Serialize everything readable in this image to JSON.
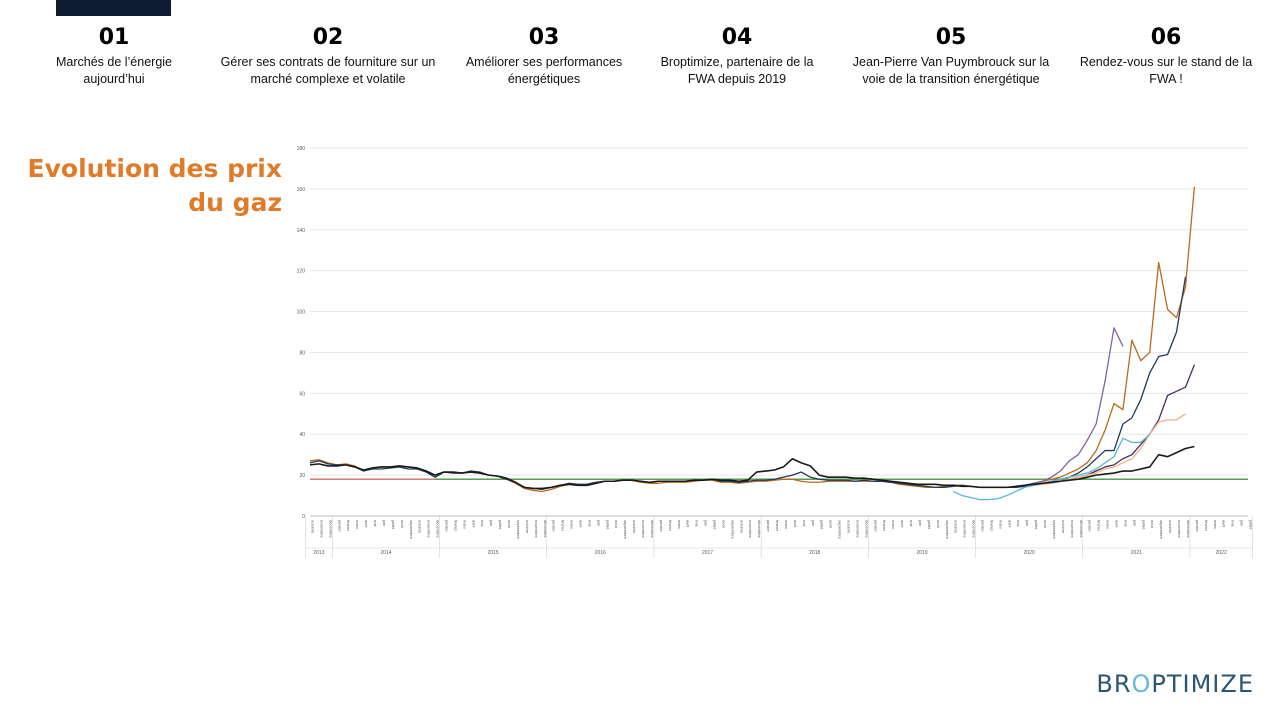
{
  "nav": [
    {
      "num": "01",
      "text": "Marchés de l’énergie aujourd’hui"
    },
    {
      "num": "02",
      "text": "Gérer ses contrats de fourniture sur un marché complexe et volatile"
    },
    {
      "num": "03",
      "text": "Améliorer ses performances énergétiques"
    },
    {
      "num": "04",
      "text": "Broptimize, partenaire de la FWA depuis 2019"
    },
    {
      "num": "05",
      "text": "Jean-Pierre Van Puymbrouck sur la voie de la transition énergétique"
    },
    {
      "num": "06",
      "text": "Rendez-vous sur le stand de la FWA !"
    }
  ],
  "title": "Evolution des prix du gaz",
  "logo": {
    "part1": "BR",
    "part2": "O",
    "part3": "PTIMIZE"
  },
  "chart_data": {
    "type": "line",
    "title": "",
    "ylim": [
      0,
      180
    ],
    "y_ticks": [
      0,
      20,
      40,
      60,
      80,
      100,
      120,
      140,
      160,
      180
    ],
    "start": "2013-10",
    "months": [
      "janvier",
      "février",
      "mars",
      "avril",
      "mai",
      "juin",
      "juillet",
      "août",
      "septembre",
      "octobre",
      "novembre",
      "décembre"
    ],
    "years": [
      "2013",
      "2014",
      "2015",
      "2016",
      "2017",
      "2018",
      "2019",
      "2020",
      "2021",
      "2022"
    ],
    "grid": true,
    "series": [
      {
        "color": "#c0504d",
        "values": [
          18,
          18,
          18,
          18,
          18,
          18,
          18,
          18,
          18,
          18,
          18,
          18,
          18,
          18,
          18,
          18,
          18,
          18,
          18,
          18,
          18,
          18,
          18,
          18,
          18,
          18,
          18,
          18,
          18,
          18,
          18,
          18,
          18,
          18,
          18,
          18,
          18,
          18,
          18,
          18,
          18,
          18,
          18,
          18,
          18,
          18,
          18,
          18,
          18,
          18,
          18,
          18,
          18,
          18,
          18,
          18,
          18,
          18,
          18,
          18,
          18,
          18,
          18,
          18,
          18,
          18,
          18,
          18,
          18,
          18,
          18,
          18,
          18,
          18,
          18,
          18,
          18,
          18,
          18,
          18,
          18,
          18,
          18,
          18,
          18,
          18,
          18,
          18,
          18,
          18,
          18,
          18,
          18,
          18,
          18,
          18,
          18,
          18,
          18,
          18,
          18,
          18,
          18,
          18,
          18,
          18
        ]
      },
      {
        "color": "#4e9a4e",
        "values": [
          null,
          null,
          null,
          null,
          null,
          null,
          null,
          null,
          null,
          null,
          null,
          null,
          null,
          null,
          18,
          18,
          18,
          18,
          18,
          18,
          18,
          18,
          18,
          18,
          18,
          18,
          18,
          18,
          18,
          18,
          18,
          18,
          18,
          18,
          18,
          18,
          18,
          18,
          18,
          18,
          18,
          18,
          18,
          18,
          18,
          18,
          18,
          18,
          18,
          18,
          18,
          18,
          18,
          18,
          18,
          18,
          18,
          18,
          18,
          18,
          18,
          18,
          18,
          18,
          18,
          18,
          18,
          18,
          18,
          18,
          18,
          18,
          18,
          18,
          18,
          18,
          18,
          18,
          18,
          18,
          18,
          18,
          18,
          18,
          18,
          18,
          18,
          18,
          18,
          18,
          18,
          18,
          18,
          18,
          18,
          18,
          18,
          18,
          18,
          18,
          18,
          18,
          18,
          18,
          18,
          18
        ]
      },
      {
        "color": "#b86a1e",
        "values": [
          27,
          27.5,
          26,
          25,
          25.5,
          24.5,
          22,
          23.5,
          24,
          24,
          24.5,
          24,
          23.5,
          22,
          19,
          21.5,
          21,
          21,
          21.5,
          21,
          20,
          19.5,
          18,
          16,
          13.5,
          12.5,
          12,
          13,
          14.5,
          15.5,
          15,
          15,
          16,
          17,
          17,
          17.5,
          17.5,
          16.5,
          16,
          16,
          16.5,
          16.5,
          16.5,
          17,
          17.5,
          17.5,
          16.5,
          16.5,
          16,
          16.5,
          17,
          17,
          17.5,
          18,
          18,
          17,
          16.5,
          16.5,
          17,
          17,
          17,
          17,
          17,
          17,
          17,
          16.5,
          15.5,
          15,
          14.5,
          14,
          14,
          14.5,
          15,
          15,
          14.5,
          14,
          14,
          14,
          14,
          14,
          15,
          16,
          17,
          18,
          19,
          21,
          23,
          26,
          32,
          42,
          55,
          52,
          86,
          76,
          80,
          124,
          101,
          97,
          112,
          161
        ]
      },
      {
        "color": "#1f3c5a",
        "values": [
          26,
          27,
          25.5,
          25,
          25,
          24,
          22,
          23,
          23,
          23.5,
          24,
          23,
          23,
          21.5,
          19,
          21.5,
          21,
          21,
          22,
          21.5,
          20,
          19.5,
          18,
          16.5,
          14,
          13.5,
          13,
          14,
          15,
          16,
          15.5,
          15.5,
          16.5,
          17,
          17,
          17.5,
          17.5,
          17,
          16.5,
          17,
          17,
          17,
          17,
          17.5,
          17.5,
          18,
          17,
          17,
          16.5,
          17,
          17.5,
          17.5,
          18,
          19,
          20,
          21.5,
          19,
          18,
          17.5,
          17.5,
          17.5,
          17,
          17.5,
          17,
          17,
          16.5,
          16,
          15.5,
          15,
          14.5,
          14,
          14,
          14.5,
          15,
          14.5,
          14,
          14,
          14,
          14,
          14,
          14.5,
          15,
          16,
          17,
          18,
          19,
          21,
          24,
          28,
          32,
          32,
          45,
          48,
          57,
          70,
          78,
          79,
          90,
          117
        ]
      },
      {
        "color": "#8064a2",
        "values": [
          null,
          null,
          null,
          null,
          null,
          null,
          null,
          null,
          null,
          null,
          null,
          null,
          null,
          null,
          null,
          null,
          null,
          null,
          null,
          null,
          null,
          null,
          null,
          null,
          null,
          null,
          null,
          null,
          null,
          null,
          null,
          null,
          null,
          null,
          null,
          null,
          null,
          null,
          null,
          null,
          null,
          null,
          null,
          null,
          null,
          null,
          null,
          null,
          null,
          null,
          null,
          null,
          null,
          null,
          null,
          null,
          null,
          null,
          null,
          null,
          null,
          null,
          null,
          null,
          null,
          null,
          null,
          null,
          null,
          null,
          null,
          null,
          null,
          null,
          null,
          null,
          null,
          null,
          null,
          null,
          15,
          16,
          17,
          19,
          22,
          27,
          30,
          37,
          45,
          66,
          92,
          83,
          null,
          null,
          null,
          null,
          null,
          null,
          null,
          null,
          null,
          null,
          null,
          null,
          null,
          null
        ]
      },
      {
        "color": "#4a2d5e",
        "values": [
          null,
          null,
          null,
          null,
          null,
          null,
          null,
          null,
          null,
          null,
          null,
          null,
          null,
          null,
          null,
          null,
          null,
          null,
          null,
          null,
          null,
          null,
          null,
          null,
          null,
          null,
          null,
          null,
          null,
          null,
          null,
          null,
          null,
          null,
          null,
          null,
          null,
          null,
          null,
          null,
          null,
          null,
          null,
          null,
          null,
          null,
          null,
          null,
          null,
          null,
          null,
          null,
          null,
          null,
          null,
          null,
          null,
          null,
          null,
          null,
          null,
          null,
          null,
          null,
          null,
          null,
          null,
          null,
          null,
          null,
          null,
          null,
          null,
          null,
          null,
          null,
          null,
          null,
          null,
          null,
          15,
          15.5,
          16,
          16,
          17,
          18,
          19,
          20,
          22,
          24,
          25,
          28,
          30,
          35,
          40,
          47,
          59,
          61,
          63,
          74,
          null,
          null,
          null,
          null,
          null,
          null
        ]
      },
      {
        "color": "#f4b183",
        "values": [
          null,
          null,
          null,
          null,
          null,
          null,
          null,
          null,
          null,
          null,
          null,
          null,
          null,
          null,
          null,
          null,
          null,
          null,
          null,
          null,
          null,
          null,
          null,
          null,
          null,
          null,
          null,
          null,
          null,
          null,
          null,
          null,
          null,
          null,
          null,
          null,
          null,
          null,
          null,
          null,
          null,
          null,
          null,
          null,
          null,
          null,
          null,
          null,
          null,
          null,
          null,
          null,
          null,
          null,
          null,
          null,
          null,
          null,
          null,
          null,
          null,
          null,
          null,
          null,
          null,
          null,
          null,
          null,
          null,
          null,
          null,
          null,
          null,
          null,
          null,
          null,
          null,
          null,
          null,
          null,
          15,
          15,
          15.5,
          16,
          17,
          18,
          19,
          20,
          21,
          23,
          24,
          26,
          28,
          33,
          40,
          46,
          47,
          47,
          50,
          null,
          null,
          null,
          null,
          null,
          null,
          null
        ]
      },
      {
        "color": "#5ab4d6",
        "values": [
          null,
          null,
          null,
          null,
          null,
          null,
          null,
          null,
          null,
          null,
          null,
          null,
          null,
          null,
          null,
          null,
          null,
          null,
          null,
          null,
          null,
          null,
          null,
          null,
          null,
          null,
          null,
          null,
          null,
          null,
          null,
          null,
          null,
          null,
          null,
          null,
          null,
          null,
          null,
          null,
          null,
          null,
          null,
          null,
          null,
          null,
          null,
          null,
          null,
          null,
          null,
          null,
          null,
          null,
          null,
          null,
          null,
          null,
          null,
          null,
          null,
          null,
          null,
          null,
          null,
          null,
          null,
          null,
          null,
          null,
          null,
          null,
          12,
          10,
          9,
          8,
          8,
          8.5,
          10,
          12,
          14,
          15,
          16,
          17,
          18,
          19,
          20,
          21,
          23,
          26,
          29,
          38,
          36,
          36,
          40,
          null,
          null,
          null,
          null,
          null,
          null,
          null,
          null,
          null,
          null,
          null
        ]
      },
      {
        "color": "#1a1a1a",
        "values": [
          25,
          25.5,
          24.5,
          24.5,
          25,
          24,
          22.5,
          23.5,
          24,
          24,
          24.5,
          24,
          23.5,
          22,
          20,
          21.5,
          21.5,
          21,
          21.5,
          21,
          20,
          19.5,
          18.5,
          16.5,
          14,
          13.5,
          13.5,
          14,
          15,
          15.5,
          15,
          15,
          16,
          17,
          17,
          17.5,
          17.5,
          17,
          16.5,
          17,
          17,
          17,
          17,
          17.5,
          17.5,
          18,
          17.5,
          17.5,
          17,
          17.5,
          21.5,
          22,
          22.5,
          24,
          28,
          26,
          24.5,
          20,
          19,
          19,
          19,
          18.5,
          18.5,
          18,
          17.5,
          17,
          16.5,
          16,
          15.5,
          15.5,
          15.5,
          15,
          15,
          14.5,
          14.5,
          14,
          14,
          14,
          14,
          14.5,
          15,
          15.5,
          16,
          16.5,
          17,
          17.5,
          18,
          19,
          20,
          20.5,
          21,
          22,
          22,
          23,
          24,
          30,
          29,
          31,
          33,
          34
        ]
      }
    ]
  }
}
